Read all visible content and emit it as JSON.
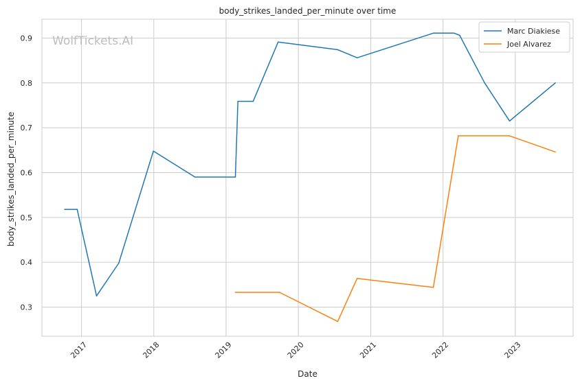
{
  "chart_data": {
    "type": "line",
    "title": "body_strikes_landed_per_minute over time",
    "xlabel": "Date",
    "ylabel": "body_strikes_landed_per_minute",
    "watermark": "WolfTickets.AI",
    "x_axis": "date",
    "xlim": [
      "2016-06-15",
      "2023-10-20"
    ],
    "ylim": [
      0.235,
      0.942
    ],
    "x_ticks": [
      {
        "label": "2017",
        "date": "2017-01-01"
      },
      {
        "label": "2018",
        "date": "2018-01-01"
      },
      {
        "label": "2019",
        "date": "2019-01-01"
      },
      {
        "label": "2020",
        "date": "2020-01-01"
      },
      {
        "label": "2021",
        "date": "2021-01-01"
      },
      {
        "label": "2022",
        "date": "2022-01-01"
      },
      {
        "label": "2023",
        "date": "2023-01-01"
      }
    ],
    "y_ticks": [
      {
        "label": "0.3",
        "value": 0.3
      },
      {
        "label": "0.4",
        "value": 0.4
      },
      {
        "label": "0.5",
        "value": 0.5
      },
      {
        "label": "0.6",
        "value": 0.6
      },
      {
        "label": "0.7",
        "value": 0.7
      },
      {
        "label": "0.8",
        "value": 0.8
      },
      {
        "label": "0.9",
        "value": 0.9
      }
    ],
    "grid": true,
    "legend_position": "top-right",
    "series": [
      {
        "name": "Marc Diakiese",
        "color": "#1f77b4",
        "points": [
          {
            "x": "2016-10-08",
            "y": 0.518
          },
          {
            "x": "2016-12-10",
            "y": 0.518
          },
          {
            "x": "2017-03-18",
            "y": 0.325
          },
          {
            "x": "2017-07-08",
            "y": 0.398
          },
          {
            "x": "2017-12-30",
            "y": 0.648
          },
          {
            "x": "2018-07-28",
            "y": 0.59
          },
          {
            "x": "2019-02-17",
            "y": 0.59
          },
          {
            "x": "2019-03-02",
            "y": 0.759
          },
          {
            "x": "2019-05-18",
            "y": 0.759
          },
          {
            "x": "2019-09-21",
            "y": 0.891
          },
          {
            "x": "2020-07-18",
            "y": 0.874
          },
          {
            "x": "2020-10-24",
            "y": 0.856
          },
          {
            "x": "2021-11-13",
            "y": 0.911
          },
          {
            "x": "2022-02-26",
            "y": 0.911
          },
          {
            "x": "2022-03-26",
            "y": 0.906
          },
          {
            "x": "2022-07-30",
            "y": 0.8
          },
          {
            "x": "2022-12-03",
            "y": 0.715
          },
          {
            "x": "2023-07-22",
            "y": 0.8
          }
        ]
      },
      {
        "name": "Joel Alvarez",
        "color": "#ff7f0e",
        "points": [
          {
            "x": "2019-02-17",
            "y": 0.333
          },
          {
            "x": "2019-09-28",
            "y": 0.333
          },
          {
            "x": "2020-07-18",
            "y": 0.268
          },
          {
            "x": "2020-10-24",
            "y": 0.364
          },
          {
            "x": "2021-11-13",
            "y": 0.344
          },
          {
            "x": "2022-03-19",
            "y": 0.682
          },
          {
            "x": "2022-12-03",
            "y": 0.682
          },
          {
            "x": "2023-07-22",
            "y": 0.646
          }
        ]
      }
    ]
  }
}
